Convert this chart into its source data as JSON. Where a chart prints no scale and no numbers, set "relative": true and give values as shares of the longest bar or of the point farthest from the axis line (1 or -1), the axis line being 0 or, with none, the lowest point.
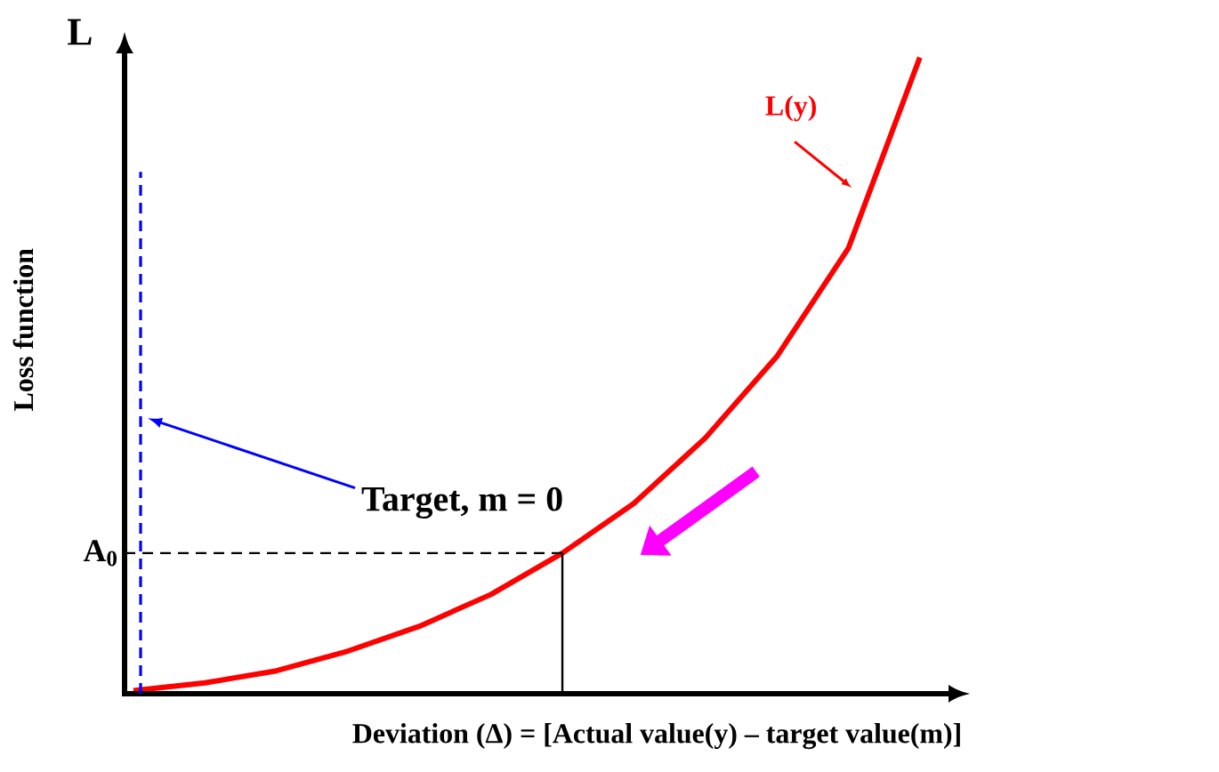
{
  "chart_data": {
    "type": "line",
    "relative": true,
    "xlabel": "Deviation (Δ)  = [Actual value(y) – target value(m)]",
    "ylabel": "Loss function",
    "annotations": [
      "L",
      "Target, m = 0"
    ],
    "categories": [
      null,
      null,
      null,
      null,
      null,
      null,
      null,
      null,
      null,
      null,
      null,
      null
    ],
    "series": [
      {
        "name": "L(y)",
        "color": "#ff0000",
        "values": [
          0.005,
          0.017,
          0.036,
          0.067,
          0.106,
          0.156,
          0.221,
          0.299,
          0.402,
          0.53,
          0.7,
          1.0
        ]
      }
    ],
    "ref_lines": [
      {
        "axis": "y",
        "value": 0.221,
        "label": "A$_{0}$",
        "color": "#000000",
        "line_style": "dashed"
      }
    ]
  }
}
